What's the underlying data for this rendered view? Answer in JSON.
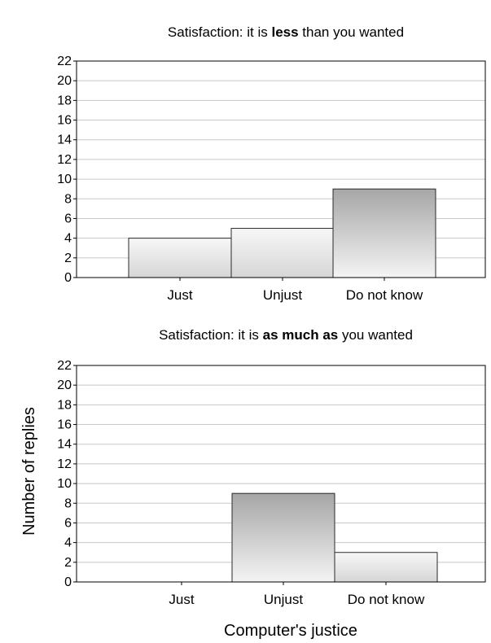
{
  "colors": {
    "bar_light": "#d6d6d6",
    "bar_dark": "#a6a6a6",
    "bar_top": "#f7f7f7",
    "grid": "#c8c8c8",
    "frame": "#000000"
  },
  "labels": {
    "xlabel": "Computer's justice",
    "ylabel": "Number of replies"
  },
  "chart_data": [
    {
      "type": "bar",
      "title": "Satisfaction: it is less than you wanted",
      "title_parts": [
        {
          "text": "Satisfaction: it is ",
          "bold": false
        },
        {
          "text": "less",
          "bold": true
        },
        {
          "text": " than you wanted",
          "bold": false
        }
      ],
      "categories": [
        "Just",
        "Unjust",
        "Do not know"
      ],
      "values": [
        4,
        5,
        9
      ],
      "ylim": [
        0,
        22
      ],
      "yticks": [
        0,
        2,
        4,
        6,
        8,
        10,
        12,
        14,
        16,
        18,
        20,
        22
      ],
      "grid": true,
      "legend": "none"
    },
    {
      "type": "bar",
      "title": "Satisfaction: it is as much as you wanted",
      "title_parts": [
        {
          "text": "Satisfaction: it is ",
          "bold": false
        },
        {
          "text": "as much as",
          "bold": true
        },
        {
          "text": " you wanted",
          "bold": false
        }
      ],
      "categories": [
        "Just",
        "Unjust",
        "Do not know"
      ],
      "values": [
        0,
        9,
        3
      ],
      "ylim": [
        0,
        22
      ],
      "yticks": [
        0,
        2,
        4,
        6,
        8,
        10,
        12,
        14,
        16,
        18,
        20,
        22
      ],
      "grid": true,
      "legend": "none"
    }
  ]
}
